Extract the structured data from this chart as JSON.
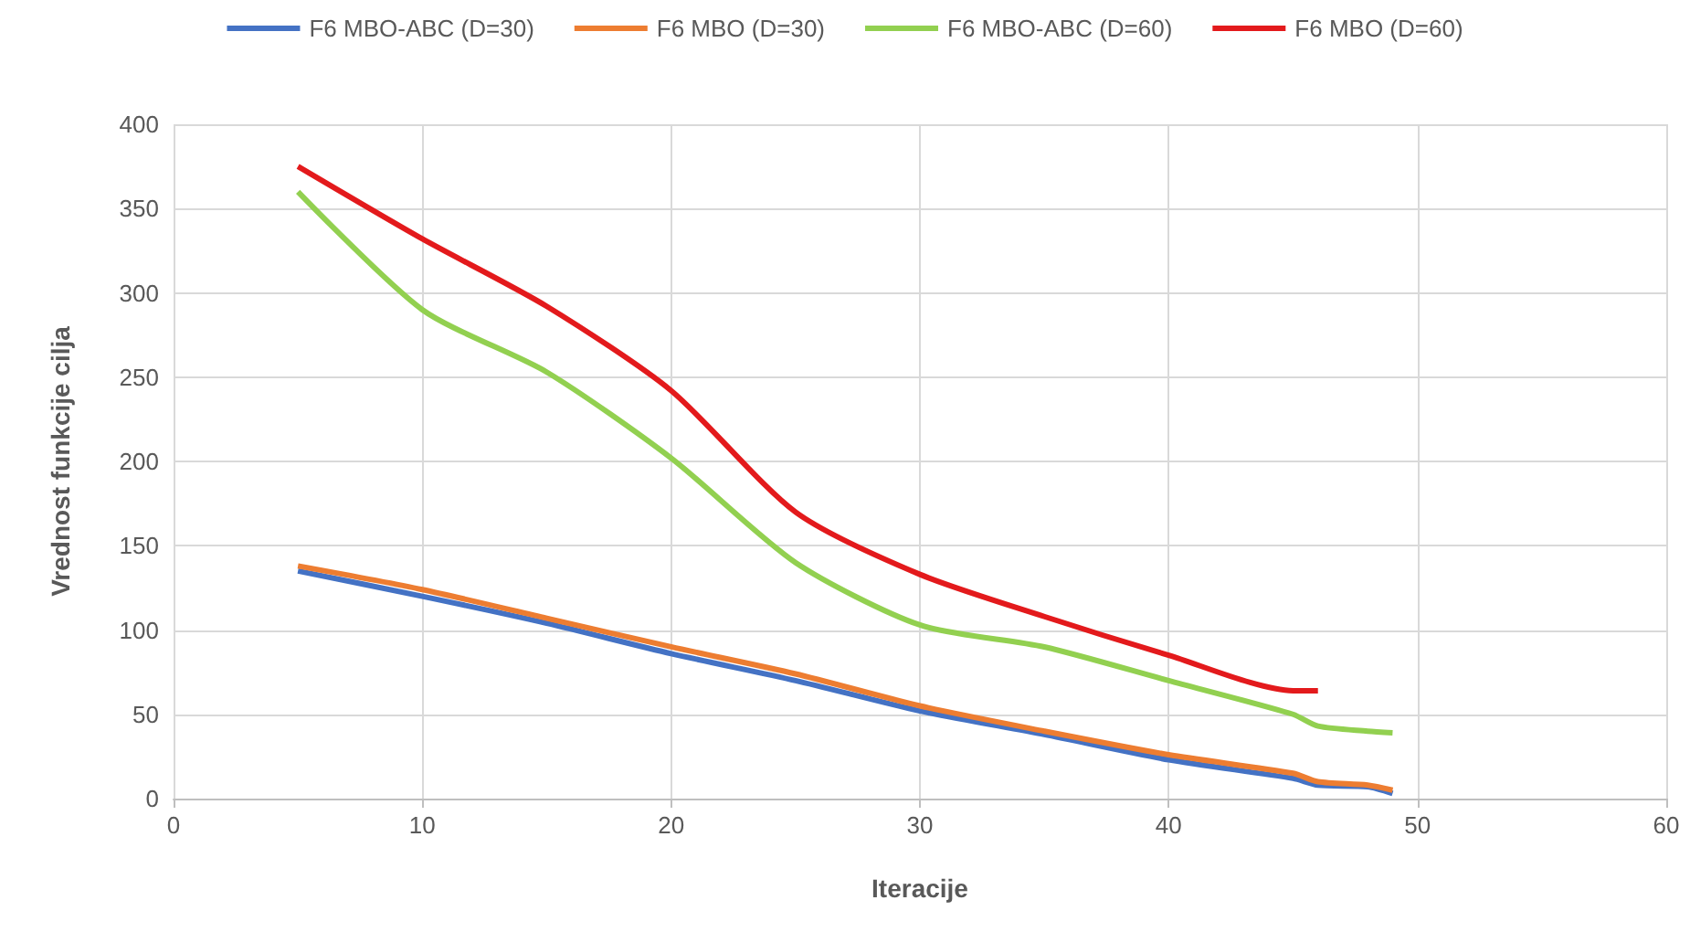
{
  "chart_data": {
    "type": "line",
    "xlabel": "Iteracije",
    "ylabel": "Vrednost funkcije cilja",
    "x": [
      5,
      10,
      15,
      20,
      25,
      30,
      35,
      40,
      45,
      46,
      48,
      49
    ],
    "series": [
      {
        "name": "F6 MBO-ABC (D=30)",
        "color": "#4472c4",
        "values": [
          135,
          120,
          104,
          86,
          70,
          52,
          38,
          23,
          12,
          8,
          7,
          3
        ]
      },
      {
        "name": "F6 MBO (D=30)",
        "color": "#ed7d31",
        "values": [
          138,
          124,
          107,
          90,
          74,
          55,
          40,
          26,
          15,
          10,
          8,
          5
        ]
      },
      {
        "name": "F6 MBO-ABC (D=60)",
        "color": "#92d050",
        "values": [
          360,
          290,
          253,
          202,
          140,
          103,
          90,
          70,
          50,
          43,
          40,
          39
        ]
      },
      {
        "name": "F6 MBO (D=60)",
        "color": "#e31a1c",
        "values": [
          375,
          332,
          292,
          242,
          170,
          133,
          108,
          85,
          64,
          64,
          null,
          null
        ]
      }
    ],
    "xlim": [
      0,
      60
    ],
    "xticks": [
      0,
      10,
      20,
      30,
      40,
      50,
      60
    ],
    "ylim": [
      0,
      400
    ],
    "yticks": [
      0,
      50,
      100,
      150,
      200,
      250,
      300,
      350,
      400
    ],
    "grid": true,
    "legend": "top",
    "marker": "none",
    "line_style": "solid"
  }
}
